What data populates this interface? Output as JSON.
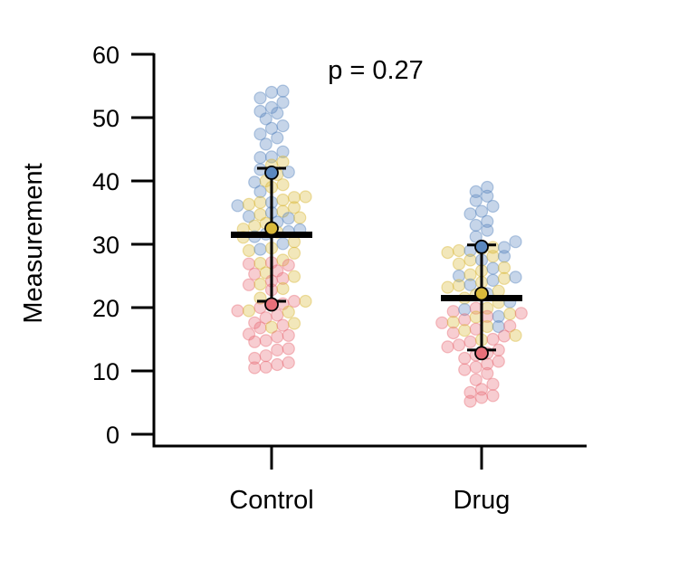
{
  "chart_data": {
    "type": "scatter",
    "subtype": "superplot",
    "title": "",
    "xlabel": "",
    "ylabel": "Measurement",
    "ylim": [
      0,
      60
    ],
    "yticks": [
      0,
      10,
      20,
      30,
      40,
      50,
      60
    ],
    "categories": [
      "Control",
      "Drug"
    ],
    "annotation": "p = 0.27",
    "grid": false,
    "legend": "none",
    "replicate_colors": [
      "#e8707a",
      "#d9b93a",
      "#5b88bf"
    ],
    "groups": [
      {
        "name": "Control",
        "mean": 31.5,
        "replicate_means": [
          20.5,
          32.5,
          41.3
        ],
        "error_low": 21.0,
        "error_high": 42.0,
        "replicates": [
          {
            "color": "#e8707a",
            "values": [
              10.5,
              10.6,
              11.0,
              11.3,
              12.0,
              12.4,
              13.3,
              13.5,
              14.6,
              14.8,
              15.4,
              15.6,
              15.8,
              16.8,
              17.2,
              17.6,
              18.4,
              18.8,
              19.5,
              20.0,
              20.4,
              20.6,
              21.0,
              22.8,
              23.6,
              24.2,
              24.6,
              25.3,
              25.8,
              26.7,
              26.9,
              27.1
            ]
          },
          {
            "color": "#d9b93a",
            "values": [
              16.9,
              17.5,
              19.3,
              19.5,
              21.0,
              21.5,
              23.0,
              23.7,
              24.9,
              25.5,
              27.0,
              27.5,
              28.6,
              29.0,
              29.4,
              30.4,
              31.1,
              31.9,
              32.4,
              32.9,
              33.3,
              34.2,
              34.7,
              35.2,
              35.8,
              36.3,
              36.6,
              37.0,
              37.4,
              37.5,
              39.0,
              39.4,
              40.0,
              41.0,
              42.5,
              43.0
            ]
          },
          {
            "color": "#5b88bf",
            "values": [
              29.2,
              30.1,
              31.2,
              31.6,
              32.0,
              32.3,
              33.5,
              34.1,
              34.4,
              35.0,
              36.1,
              36.6,
              38.3,
              39.8,
              41.4,
              41.8,
              43.7,
              43.8,
              44.6,
              45.8,
              46.8,
              47.4,
              48.3,
              48.7,
              49.8,
              50.7,
              51.0,
              51.6,
              52.4,
              53.1,
              54.0,
              54.2
            ]
          }
        ]
      },
      {
        "name": "Drug",
        "mean": 21.5,
        "replicate_means": [
          12.8,
          22.2,
          29.6
        ],
        "error_low": 13.3,
        "error_high": 29.9,
        "replicates": [
          {
            "color": "#e8707a",
            "values": [
              5.2,
              5.8,
              6.1,
              6.6,
              7.1,
              7.9,
              8.6,
              9.6,
              10.2,
              10.6,
              11.1,
              11.5,
              12.0,
              12.5,
              12.8,
              13.3,
              13.8,
              14.1,
              14.6,
              15.0,
              15.5,
              16.0,
              16.6,
              17.1,
              17.6,
              18.1,
              18.6,
              19.1,
              19.4,
              19.9
            ]
          },
          {
            "color": "#d9b93a",
            "values": [
              14.9,
              15.6,
              16.4,
              17.0,
              17.7,
              18.5,
              19.0,
              19.9,
              20.8,
              21.5,
              22.0,
              22.6,
              23.2,
              23.5,
              24.0,
              24.6,
              25.2,
              25.8,
              26.3,
              26.9,
              27.5,
              28.1,
              28.7,
              29.0,
              29.3,
              29.5
            ]
          },
          {
            "color": "#5b88bf",
            "values": [
              17.0,
              18.6,
              19.7,
              20.9,
              22.2,
              23.6,
              24.3,
              24.8,
              25.0,
              26.2,
              27.5,
              28.1,
              29.0,
              29.5,
              30.4,
              31.2,
              32.2,
              33.0,
              33.6,
              34.8,
              35.2,
              36.0,
              36.9,
              37.6,
              38.3,
              39.0
            ]
          }
        ]
      }
    ]
  }
}
